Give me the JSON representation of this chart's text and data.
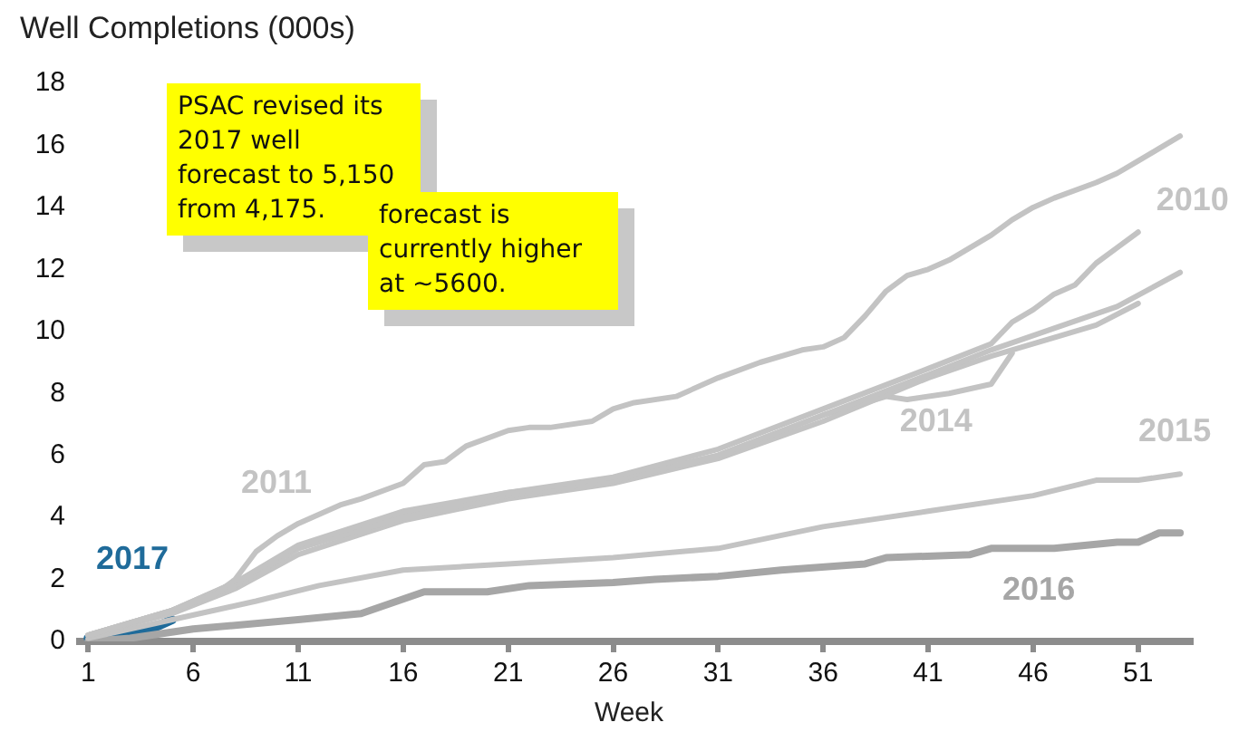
{
  "chart_data": {
    "type": "line",
    "ylabel": "Well Completions (000s)",
    "xlabel": "Week",
    "xlim": [
      0.6,
      53.6
    ],
    "xticks": [
      1,
      6,
      11,
      16,
      21,
      26,
      31,
      36,
      41,
      46,
      51
    ],
    "ylim": [
      0,
      18
    ],
    "yticks": [
      0,
      2,
      4,
      6,
      8,
      10,
      12,
      14,
      16,
      18
    ],
    "grid": false,
    "legend": false,
    "marker": "none",
    "line_style": "solid",
    "series": [
      {
        "name": "2011",
        "color": "#c3c3c3",
        "x": [
          1,
          3,
          5,
          7,
          8,
          9,
          10,
          11,
          13,
          14,
          16,
          17,
          18,
          19,
          21,
          22,
          23,
          25,
          26,
          27,
          29,
          31,
          33,
          35,
          36,
          37,
          38,
          39,
          40,
          41,
          42,
          43,
          44,
          45,
          46,
          47,
          49,
          50,
          51,
          52,
          53
        ],
        "values": [
          0.2,
          0.6,
          1.0,
          1.5,
          2.0,
          2.9,
          3.4,
          3.8,
          4.4,
          4.6,
          5.1,
          5.7,
          5.8,
          6.3,
          6.8,
          6.9,
          6.9,
          7.1,
          7.5,
          7.7,
          7.9,
          8.5,
          9.0,
          9.4,
          9.5,
          9.8,
          10.5,
          11.3,
          11.8,
          12.0,
          12.3,
          12.7,
          13.1,
          13.6,
          14.0,
          14.3,
          14.8,
          15.1,
          15.5,
          15.9,
          16.3
        ]
      },
      {
        "name": "2010",
        "color": "#c3c3c3",
        "x": [
          1,
          5,
          8,
          11,
          16,
          21,
          26,
          31,
          36,
          41,
          44,
          45,
          46,
          47,
          48,
          49,
          50,
          51
        ],
        "values": [
          0.2,
          1.0,
          1.9,
          3.1,
          4.2,
          4.8,
          5.3,
          6.2,
          7.5,
          8.8,
          9.6,
          10.3,
          10.7,
          11.2,
          11.5,
          12.2,
          12.7,
          13.2
        ]
      },
      {
        "color": "#c3c3c3",
        "x": [
          1,
          5,
          8,
          11,
          16,
          21,
          26,
          31,
          36,
          41,
          44,
          47,
          50,
          53
        ],
        "values": [
          0.2,
          1.0,
          1.8,
          3.0,
          4.0,
          4.7,
          5.2,
          6.0,
          7.3,
          8.6,
          9.4,
          10.1,
          10.8,
          11.9
        ]
      },
      {
        "color": "#c3c3c3",
        "x": [
          1,
          5,
          8,
          11,
          16,
          21,
          26,
          31,
          36,
          41,
          44,
          47,
          49,
          51
        ],
        "values": [
          0.2,
          0.9,
          1.7,
          2.8,
          3.9,
          4.6,
          5.1,
          5.9,
          7.1,
          8.5,
          9.2,
          9.8,
          10.2,
          10.9
        ]
      },
      {
        "name": "2014",
        "color": "#c3c3c3",
        "x": [
          1,
          5,
          8,
          11,
          16,
          21,
          26,
          31,
          36,
          39,
          40,
          42,
          44,
          45
        ],
        "values": [
          0.2,
          1.0,
          1.9,
          3.0,
          4.1,
          4.8,
          5.2,
          6.0,
          7.3,
          7.9,
          7.8,
          8.0,
          8.3,
          9.3
        ]
      },
      {
        "name": "2015",
        "color": "#c3c3c3",
        "x": [
          1,
          5,
          9,
          12,
          16,
          21,
          26,
          31,
          36,
          41,
          46,
          49,
          51,
          53
        ],
        "values": [
          0.1,
          0.7,
          1.3,
          1.8,
          2.3,
          2.5,
          2.7,
          3.0,
          3.7,
          4.2,
          4.7,
          5.2,
          5.2,
          5.4
        ]
      },
      {
        "name": "2016",
        "color": "#a6a6a6",
        "x": [
          1,
          3,
          6,
          11,
          14,
          17,
          20,
          22,
          26,
          28,
          31,
          34,
          38,
          39,
          43,
          44,
          47,
          50,
          51,
          52,
          53
        ],
        "values": [
          0,
          0.1,
          0.4,
          0.7,
          0.9,
          1.6,
          1.6,
          1.8,
          1.9,
          2.0,
          2.1,
          2.3,
          2.5,
          2.7,
          2.8,
          3.0,
          3.0,
          3.2,
          3.2,
          3.5,
          3.5
        ]
      },
      {
        "name": "2017",
        "color": "#1f6b9a",
        "x": [
          1,
          2,
          3,
          4,
          5
        ],
        "values": [
          0.1,
          0.1,
          0.2,
          0.4,
          0.7
        ]
      }
    ],
    "annotations": [
      "PSAC revised its 2017 well forecast to 5,150 from 4,175.",
      "forecast is currently higher at ~5600."
    ]
  }
}
